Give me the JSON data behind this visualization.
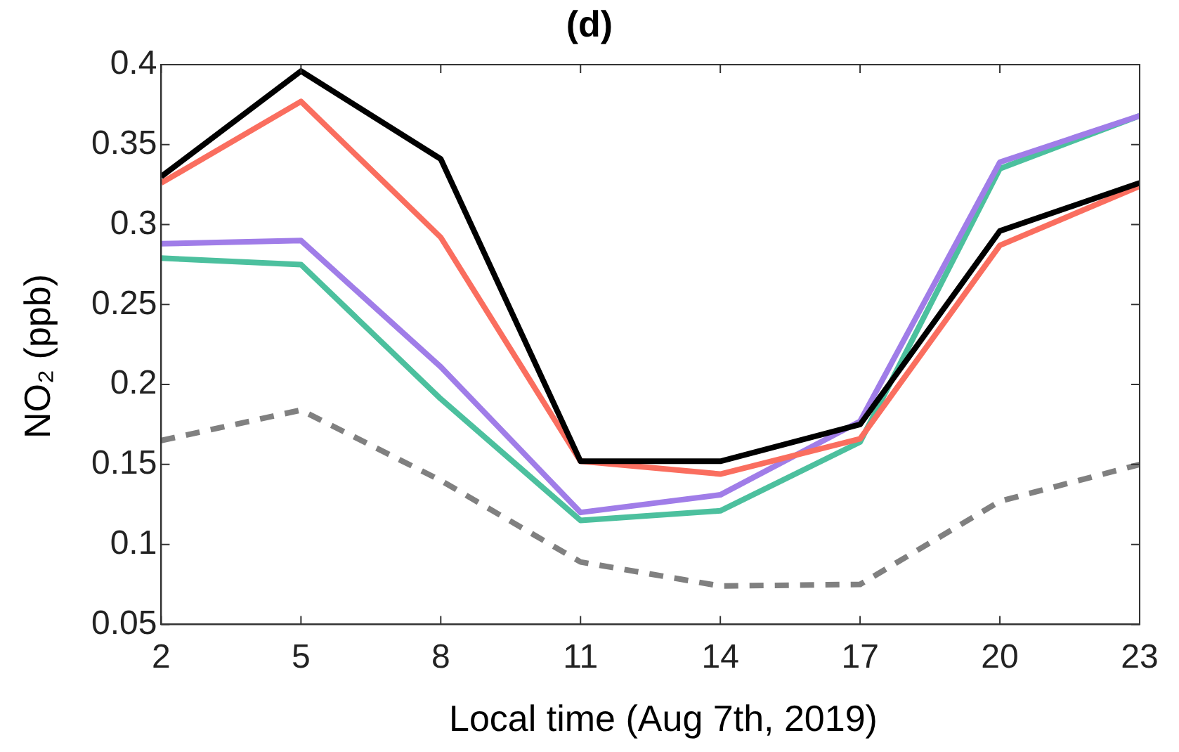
{
  "chart_data": {
    "type": "line",
    "title": "(d)",
    "xlabel": "Local time (Aug 7th, 2019)",
    "ylabel": "NO₂ (ppb)",
    "x": [
      2,
      5,
      8,
      11,
      14,
      17,
      20,
      23
    ],
    "xlim": [
      2,
      23
    ],
    "xticks": [
      2,
      5,
      8,
      11,
      14,
      17,
      20,
      23
    ],
    "ylim": [
      0.05,
      0.4
    ],
    "yticks": [
      0.05,
      0.1,
      0.15,
      0.2,
      0.25,
      0.3,
      0.35,
      0.4
    ],
    "grid": false,
    "legend": false,
    "marker": "none",
    "series": [
      {
        "color": "#000000",
        "line_style": "solid",
        "values": [
          0.33,
          0.396,
          0.341,
          0.152,
          0.152,
          0.175,
          0.296,
          0.326
        ]
      },
      {
        "color": "#fa6e5f",
        "line_style": "solid",
        "values": [
          0.326,
          0.377,
          0.292,
          0.152,
          0.144,
          0.166,
          0.287,
          0.324
        ]
      },
      {
        "color": "#a07de8",
        "line_style": "solid",
        "values": [
          0.288,
          0.29,
          0.211,
          0.12,
          0.131,
          0.177,
          0.339,
          0.368
        ]
      },
      {
        "color": "#4cc09e",
        "line_style": "solid",
        "values": [
          0.279,
          0.275,
          0.191,
          0.115,
          0.121,
          0.164,
          0.335,
          0.368
        ]
      },
      {
        "color": "#808080",
        "line_style": "dashed",
        "values": [
          0.165,
          0.184,
          0.14,
          0.089,
          0.074,
          0.075,
          0.127,
          0.15
        ]
      }
    ]
  }
}
